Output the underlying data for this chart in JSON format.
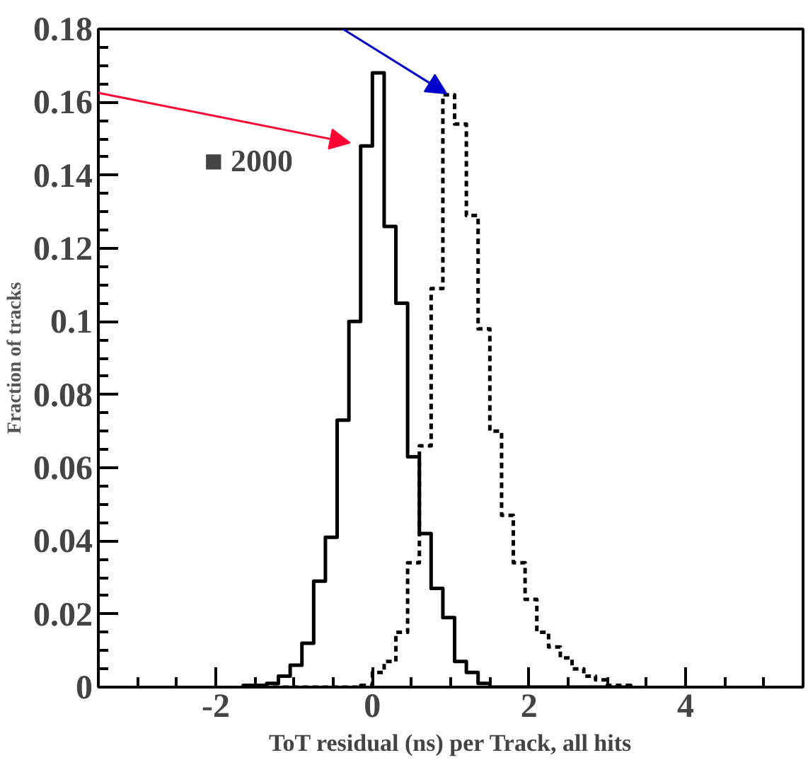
{
  "chart_data": {
    "type": "histogram",
    "xlabel": "ToT residual (ns) per Track, all hits",
    "ylabel": "Fraction of tracks",
    "xlim": [
      -3.5,
      5.5
    ],
    "xticks": [
      -2,
      0,
      2,
      4
    ],
    "ylim": [
      0,
      0.18
    ],
    "yticks": [
      0,
      0.02,
      0.04,
      0.06,
      0.08,
      0.1,
      0.12,
      0.14,
      0.16,
      0.18
    ],
    "bins": [
      -1.65,
      -1.5,
      -1.35,
      -1.2,
      -1.05,
      -0.9,
      -0.75,
      -0.6,
      -0.45,
      -0.3,
      -0.15,
      0,
      0.15,
      0.3,
      0.45,
      0.6,
      0.75,
      0.9,
      1.05,
      1.2,
      1.35,
      1.5,
      1.65,
      1.8,
      1.95,
      2.1,
      2.25,
      2.4,
      2.55,
      2.7,
      2.85,
      3.0,
      3.15,
      3.3
    ],
    "series": [
      {
        "color": "#000000",
        "line_style": "solid",
        "values": [
          0.0005,
          0.0005,
          0.001,
          0.003,
          0.006,
          0.012,
          0.029,
          0.041,
          0.073,
          0.1,
          0.148,
          0.168,
          0.126,
          0.105,
          0.063,
          0.042,
          0.027,
          0.019,
          0.007,
          0.004,
          0.001,
          0,
          0,
          0,
          0,
          0,
          0,
          0,
          0,
          0,
          0,
          0,
          0
        ]
      },
      {
        "color": "#000000",
        "line_style": "dashed",
        "values": [
          0,
          0,
          0,
          0,
          0,
          0,
          0,
          0,
          0,
          0,
          0.0005,
          0.004,
          0.007,
          0.015,
          0.034,
          0.066,
          0.109,
          0.162,
          0.154,
          0.129,
          0.098,
          0.07,
          0.047,
          0.034,
          0.024,
          0.015,
          0.011,
          0.008,
          0.005,
          0.003,
          0.002,
          0.0005,
          0.0005
        ]
      }
    ],
    "annotations": [
      "■ 2000"
    ],
    "grid": false
  }
}
